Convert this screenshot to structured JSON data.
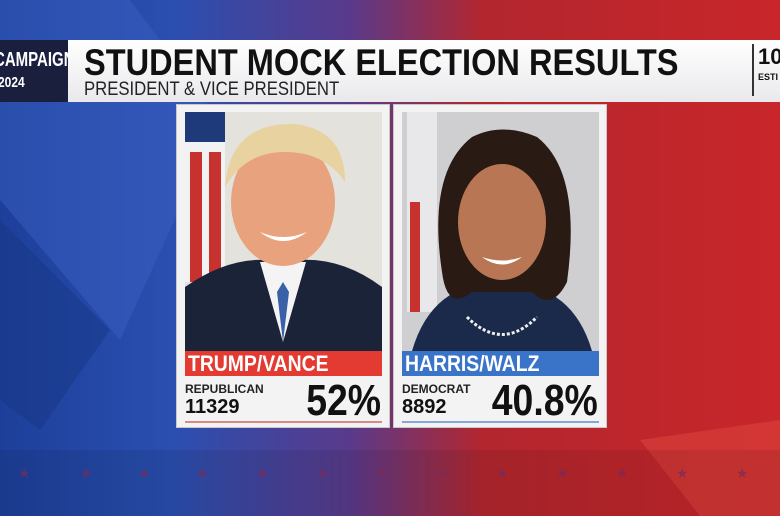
{
  "colors": {
    "republican": "#e33a32",
    "democrat": "#3a74c8",
    "logo_bg": "#1a1f3e"
  },
  "logo": {
    "line1": "CAMPAIGN",
    "line2": "2024"
  },
  "header": {
    "title": "STUDENT MOCK ELECTION RESULTS",
    "subtitle": "PRESIDENT & VICE PRESIDENT",
    "right_number": "10",
    "right_label": "ESTI"
  },
  "candidates": [
    {
      "name": "TRUMP/VANCE",
      "party": "REPUBLICAN",
      "votes": "11329",
      "percent": "52%"
    },
    {
      "name": "HARRIS/WALZ",
      "party": "DEMOCRAT",
      "votes": "8892",
      "percent": "40.8%"
    }
  ]
}
